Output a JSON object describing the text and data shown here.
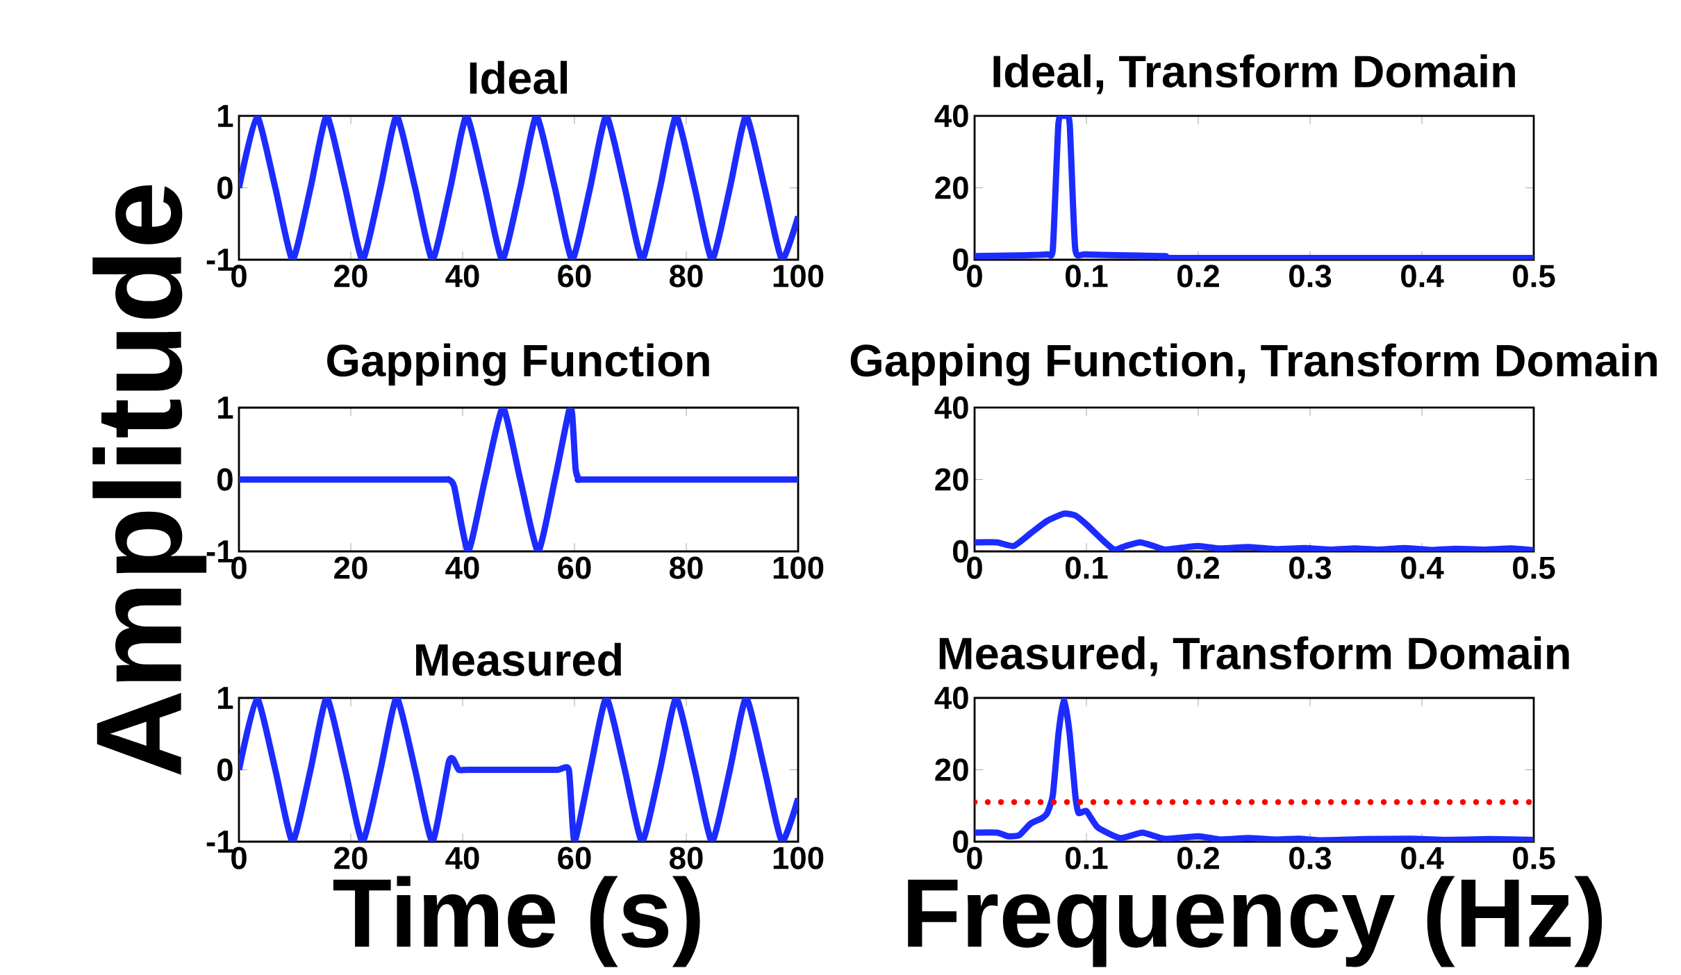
{
  "chart_data": [
    {
      "type": "line",
      "title": "Ideal",
      "xlim": [
        0,
        100
      ],
      "ylim": [
        -1,
        1
      ],
      "xticks": [
        0,
        20,
        40,
        60,
        80,
        100
      ],
      "yticks": [
        -1,
        0,
        1
      ],
      "series": [
        {
          "color": "#1c2cff",
          "x": [
            0,
            3.2,
            6.5,
            9.6,
            12.8,
            15.7,
            19,
            22.1,
            25.3,
            28.2,
            31.5,
            34.6,
            37.8,
            40.7,
            44,
            47.1,
            50.3,
            53.2,
            56.5,
            59.6,
            62.8,
            65.7,
            69,
            72.1,
            75.3,
            78.2,
            81.5,
            84.6,
            87.8,
            90.7,
            94,
            97.1,
            100
          ],
          "values": [
            0,
            1,
            0,
            -1,
            0,
            1,
            0,
            -1,
            0,
            1,
            0,
            -1,
            0,
            1,
            0,
            -1,
            0,
            1,
            0,
            -1,
            0,
            1,
            0,
            -1,
            0,
            1,
            0,
            -1,
            0,
            1,
            0,
            -1,
            -0.4
          ]
        }
      ]
    },
    {
      "type": "line",
      "title": "Ideal, Transform Domain",
      "xlim": [
        0,
        0.5
      ],
      "ylim": [
        0,
        40
      ],
      "xticks": [
        0,
        0.1,
        0.2,
        0.3,
        0.4,
        0.5
      ],
      "yticks": [
        0,
        20,
        40
      ],
      "series": [
        {
          "color": "#1c2cff",
          "x": [
            0,
            0.04,
            0.065,
            0.07,
            0.075,
            0.08,
            0.085,
            0.09,
            0.1,
            0.17,
            0.18,
            0.5
          ],
          "values": [
            1,
            1.2,
            1.5,
            3,
            38,
            40,
            38,
            3,
            1.5,
            1,
            0.5,
            0.5
          ]
        }
      ]
    },
    {
      "type": "line",
      "title": "Gapping Function",
      "ylabel": "Amplitude",
      "xlim": [
        0,
        100
      ],
      "ylim": [
        -1,
        1
      ],
      "xticks": [
        0,
        20,
        40,
        60,
        80,
        100
      ],
      "yticks": [
        -1,
        0,
        1
      ],
      "series": [
        {
          "color": "#1c2cff",
          "x": [
            0,
            20,
            36.5,
            37.5,
            38.5,
            41,
            44,
            47.2,
            50.3,
            53.5,
            56.5,
            59,
            59.6,
            60.2,
            60.8,
            61.5,
            80,
            100
          ],
          "values": [
            0,
            0,
            0,
            0,
            -0.1,
            -1,
            0,
            1,
            0,
            -1,
            0,
            0.95,
            0.9,
            0.15,
            0,
            0,
            0,
            0
          ]
        }
      ]
    },
    {
      "type": "line",
      "title": "Gapping Function, Transform Domain",
      "xlim": [
        0,
        0.5
      ],
      "ylim": [
        0,
        40
      ],
      "xticks": [
        0,
        0.1,
        0.2,
        0.3,
        0.4,
        0.5
      ],
      "yticks": [
        0,
        20,
        40
      ],
      "series": [
        {
          "color": "#1c2cff",
          "x": [
            0,
            0.02,
            0.035,
            0.05,
            0.065,
            0.08,
            0.09,
            0.1,
            0.115,
            0.125,
            0.135,
            0.148,
            0.16,
            0.17,
            0.185,
            0.2,
            0.22,
            0.245,
            0.27,
            0.295,
            0.32,
            0.34,
            0.36,
            0.385,
            0.41,
            0.43,
            0.455,
            0.48,
            0.5
          ],
          "values": [
            2.5,
            2.5,
            1.5,
            5,
            8.5,
            10.5,
            10,
            7.5,
            3,
            0.5,
            1.5,
            2.5,
            1.5,
            0.5,
            1,
            1.5,
            0.8,
            1.2,
            0.6,
            0.9,
            0.5,
            0.8,
            0.5,
            0.9,
            0.4,
            0.7,
            0.5,
            0.8,
            0.3
          ]
        }
      ]
    },
    {
      "type": "line",
      "title": "Measured",
      "xlabel": "Time (s)",
      "xlim": [
        0,
        100
      ],
      "ylim": [
        -1,
        1
      ],
      "xticks": [
        0,
        20,
        40,
        60,
        80,
        100
      ],
      "yticks": [
        -1,
        0,
        1
      ],
      "series": [
        {
          "color": "#1c2cff",
          "x": [
            0,
            3.2,
            6.5,
            9.6,
            12.8,
            15.7,
            19,
            22.1,
            25.3,
            28.2,
            31.5,
            34.6,
            37.5,
            38.3,
            39.3,
            41,
            50,
            57,
            59,
            60,
            62.8,
            65.7,
            69,
            72.1,
            75.3,
            78.2,
            81.5,
            84.6,
            87.8,
            90.7,
            94,
            97.1,
            100
          ],
          "values": [
            0,
            1,
            0,
            -1,
            0,
            1,
            0,
            -1,
            0,
            1,
            0,
            -1,
            0.1,
            0.15,
            0,
            0,
            0,
            0,
            0,
            -1,
            0,
            1,
            0,
            -1,
            0,
            1,
            0,
            -1,
            0,
            1,
            0,
            -1,
            -0.4
          ]
        }
      ]
    },
    {
      "type": "line",
      "title": "Measured, Transform Domain",
      "xlabel": "Frequency (Hz)",
      "xlim": [
        0,
        0.5
      ],
      "ylim": [
        0,
        40
      ],
      "xticks": [
        0,
        0.1,
        0.2,
        0.3,
        0.4,
        0.5
      ],
      "yticks": [
        0,
        20,
        40
      ],
      "ref_lines": [
        {
          "axis": "y",
          "value": 11,
          "color": "#ff0000",
          "line_style": "dotted"
        }
      ],
      "series": [
        {
          "color": "#1c2cff",
          "x": [
            0,
            0.02,
            0.03,
            0.04,
            0.05,
            0.06,
            0.065,
            0.07,
            0.075,
            0.08,
            0.085,
            0.09,
            0.093,
            0.1,
            0.11,
            0.13,
            0.15,
            0.17,
            0.2,
            0.22,
            0.245,
            0.27,
            0.29,
            0.31,
            0.35,
            0.39,
            0.42,
            0.46,
            0.5
          ],
          "values": [
            2.5,
            2.5,
            1.5,
            1.8,
            5,
            6.5,
            8,
            13,
            30,
            40,
            30,
            13,
            8,
            8.5,
            4,
            1,
            2.5,
            0.8,
            1.5,
            0.6,
            1,
            0.6,
            0.8,
            0.4,
            0.7,
            0.8,
            0.5,
            0.7,
            0.5
          ]
        }
      ]
    }
  ]
}
